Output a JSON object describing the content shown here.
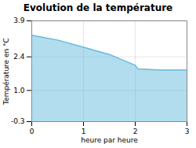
{
  "chart_data": {
    "type": "area",
    "title": "Evolution de la température",
    "xlabel": "heure par heure",
    "ylabel": "Température en °C",
    "x": [
      0,
      0.5,
      1.0,
      1.5,
      2.0,
      2.05,
      2.5,
      3.0
    ],
    "values": [
      3.3,
      3.1,
      2.8,
      2.5,
      2.05,
      1.9,
      1.85,
      1.85
    ],
    "color": "#66bbdd",
    "xlim": [
      0,
      3
    ],
    "ylim": [
      -0.3,
      3.9
    ],
    "xticks": [
      0,
      1,
      2,
      3
    ],
    "yticks": [
      -0.3,
      {
        "value": 1.0,
        "label": "1.0"
      },
      2.4,
      3.9
    ],
    "grid": true
  }
}
